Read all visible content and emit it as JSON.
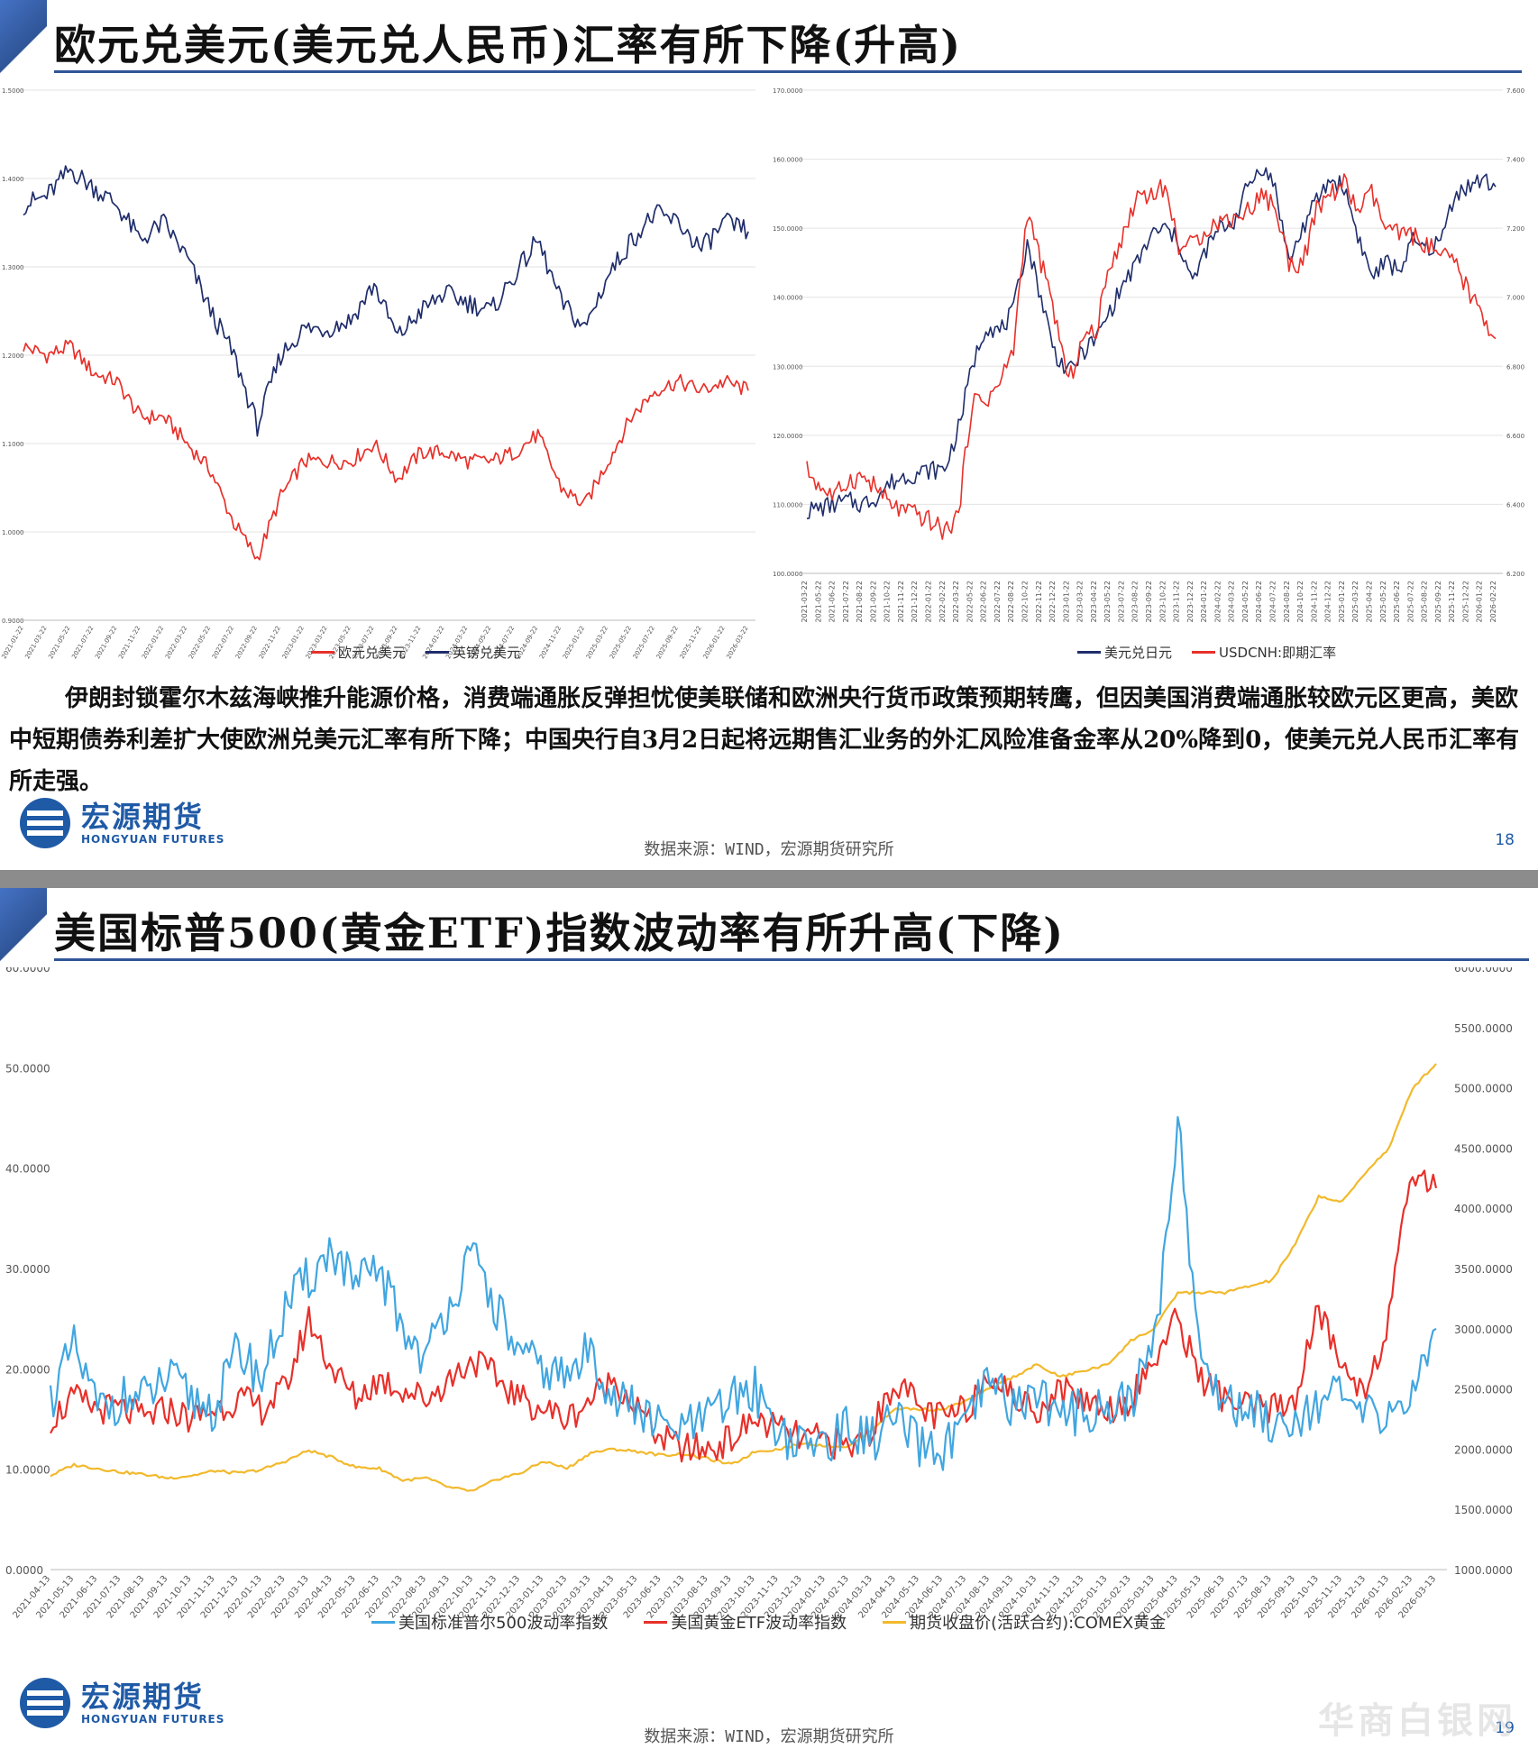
{
  "slide1": {
    "title": "欧元兑美元(美元兑人民币)汇率有所下降(升高)",
    "body": "伊朗封锁霍尔木兹海峡推升能源价格，消费端通胀反弹担忧使美联储和欧洲央行货币政策预期转鹰，但因美国消费端通胀较欧元区更高，美欧中短期债券利差扩大使欧洲兑美元汇率有所下降；中国央行自3月2日起将远期售汇业务的外汇风险准备金率从20%降到0，使美元兑人民币汇率有所走强。",
    "source": "数据来源：WIND，宏源期货研究所",
    "page": "18"
  },
  "slide2": {
    "title": "美国标普500(黄金ETF)指数波动率有所升高(下降)",
    "source": "数据来源：WIND，宏源期货研究所",
    "page": "19"
  },
  "logo": {
    "cn": "宏源期货",
    "en": "HONGYUAN FUTURES"
  },
  "watermark": "华商白银网",
  "colors": {
    "navy": "#1f2d6b",
    "red": "#e8302a",
    "blue": "#41a6e0",
    "gold": "#f2b92c",
    "brand": "#1f5aa6"
  },
  "chart_data": [
    {
      "id": "eur-gbp-usd",
      "type": "line",
      "legend_position": "bottom",
      "grid": true,
      "ylim": [
        0.9,
        1.5
      ],
      "yticks": [
        "1.5000",
        "1.4000",
        "1.3000",
        "1.2000",
        "1.1000",
        "1.0000",
        "0.9000"
      ],
      "x": [
        "2021-01-22",
        "2021-03-22",
        "2021-05-22",
        "2021-07-22",
        "2021-09-22",
        "2021-11-22",
        "2022-01-22",
        "2022-03-22",
        "2022-05-22",
        "2022-07-22",
        "2022-09-22",
        "2022-11-22",
        "2023-01-22",
        "2023-03-22",
        "2023-05-22",
        "2023-07-22",
        "2023-09-22",
        "2023-11-22",
        "2024-01-22",
        "2024-03-22",
        "2024-05-22",
        "2024-07-22",
        "2024-09-22",
        "2024-11-22",
        "2025-01-22",
        "2025-03-22",
        "2025-05-22",
        "2025-07-22",
        "2025-09-22",
        "2025-11-22",
        "2026-01-22",
        "2026-03-22"
      ],
      "series": [
        {
          "name": "欧元兑美元",
          "color": "#e8302a",
          "values": [
            1.21,
            1.2,
            1.21,
            1.18,
            1.17,
            1.13,
            1.13,
            1.1,
            1.07,
            1.01,
            0.97,
            1.04,
            1.08,
            1.08,
            1.08,
            1.1,
            1.06,
            1.09,
            1.09,
            1.08,
            1.08,
            1.09,
            1.11,
            1.05,
            1.03,
            1.08,
            1.13,
            1.16,
            1.17,
            1.16,
            1.17,
            1.16
          ]
        },
        {
          "name": "英镑兑美元",
          "color": "#1f2d6b",
          "values": [
            1.37,
            1.38,
            1.41,
            1.39,
            1.37,
            1.33,
            1.35,
            1.31,
            1.25,
            1.2,
            1.12,
            1.2,
            1.23,
            1.23,
            1.24,
            1.28,
            1.22,
            1.25,
            1.27,
            1.26,
            1.25,
            1.29,
            1.33,
            1.26,
            1.23,
            1.29,
            1.33,
            1.36,
            1.35,
            1.32,
            1.35,
            1.34
          ]
        }
      ]
    },
    {
      "id": "usdjpy-usdcnh",
      "type": "line",
      "legend_position": "bottom",
      "grid": true,
      "ylim_left": [
        100,
        170
      ],
      "ylim_right": [
        6.2,
        7.6
      ],
      "yticks_left": [
        "170.0000",
        "160.0000",
        "150.0000",
        "140.0000",
        "130.0000",
        "120.0000",
        "110.0000",
        "100.0000"
      ],
      "yticks_right": [
        "7.600",
        "7.400",
        "7.200",
        "7.000",
        "6.800",
        "6.600",
        "6.400",
        "6.200"
      ],
      "x": [
        "2021-03-22",
        "2021-05-22",
        "2021-06-22",
        "2021-07-22",
        "2021-08-22",
        "2021-09-22",
        "2021-10-22",
        "2021-11-22",
        "2021-12-22",
        "2022-01-22",
        "2022-02-22",
        "2022-03-22",
        "2022-05-22",
        "2022-06-22",
        "2022-07-22",
        "2022-08-22",
        "2022-10-22",
        "2022-11-22",
        "2022-12-22",
        "2023-01-22",
        "2023-03-22",
        "2023-04-22",
        "2023-05-22",
        "2023-07-22",
        "2023-08-22",
        "2023-09-22",
        "2023-10-22",
        "2023-11-22",
        "2023-12-22",
        "2024-01-22",
        "2024-02-22",
        "2024-03-22",
        "2024-05-22",
        "2024-06-22",
        "2024-07-22",
        "2024-08-22",
        "2024-10-22",
        "2024-11-22",
        "2024-12-22",
        "2025-01-22",
        "2025-03-22",
        "2025-04-22",
        "2025-05-22",
        "2025-06-22",
        "2025-07-22",
        "2025-08-22",
        "2025-09-22",
        "2025-11-22",
        "2025-12-22",
        "2026-01-22",
        "2026-02-22"
      ],
      "series": [
        {
          "name": "美元兑日元",
          "color": "#1f2d6b",
          "axis": "left",
          "values": [
            109,
            109.5,
            110,
            110.5,
            110,
            111,
            113,
            114,
            114.5,
            115,
            115,
            121,
            130,
            136,
            135,
            138,
            148,
            140,
            132,
            129,
            132,
            134,
            138,
            142,
            145,
            149,
            150,
            148,
            142,
            147,
            150,
            151,
            156,
            159,
            156,
            145,
            150,
            154,
            157,
            156,
            149,
            143,
            145,
            144,
            148,
            147,
            148,
            155,
            156,
            157,
            156
          ]
        },
        {
          "name": "USDCNH:即期汇率",
          "color": "#e8302a",
          "axis": "right",
          "values": [
            6.5,
            6.45,
            6.42,
            6.47,
            6.48,
            6.45,
            6.4,
            6.38,
            6.37,
            6.35,
            6.32,
            6.37,
            6.7,
            6.7,
            6.75,
            6.85,
            7.25,
            7.1,
            6.95,
            6.75,
            6.88,
            6.9,
            7.1,
            7.18,
            7.3,
            7.3,
            7.32,
            7.15,
            7.15,
            7.2,
            7.22,
            7.23,
            7.25,
            7.3,
            7.26,
            7.1,
            7.1,
            7.25,
            7.3,
            7.33,
            7.25,
            7.3,
            7.2,
            7.18,
            7.18,
            7.15,
            7.12,
            7.1,
            7.02,
            6.95,
            6.88
          ]
        }
      ]
    },
    {
      "id": "volatility-gold",
      "type": "line",
      "legend_position": "bottom",
      "grid": false,
      "ylim_left": [
        0,
        60
      ],
      "ylim_right": [
        1000,
        6000
      ],
      "yticks_left": [
        "60.0000",
        "50.0000",
        "40.0000",
        "30.0000",
        "20.0000",
        "10.0000",
        "0.0000"
      ],
      "yticks_right": [
        "6000.0000",
        "5500.0000",
        "5000.0000",
        "4500.0000",
        "4000.0000",
        "3500.0000",
        "3000.0000",
        "2500.0000",
        "2000.0000",
        "1500.0000",
        "1000.0000"
      ],
      "x": [
        "2021-04-13",
        "2021-05-13",
        "2021-06-13",
        "2021-07-13",
        "2021-08-13",
        "2021-09-13",
        "2021-10-13",
        "2021-11-13",
        "2021-12-13",
        "2022-01-13",
        "2022-02-13",
        "2022-03-13",
        "2022-04-13",
        "2022-05-13",
        "2022-06-13",
        "2022-07-13",
        "2022-08-13",
        "2022-09-13",
        "2022-10-13",
        "2022-11-13",
        "2022-12-13",
        "2023-01-13",
        "2023-02-13",
        "2023-03-13",
        "2023-04-13",
        "2023-05-13",
        "2023-06-13",
        "2023-07-13",
        "2023-08-13",
        "2023-09-13",
        "2023-10-13",
        "2023-11-13",
        "2023-12-13",
        "2024-01-13",
        "2024-02-13",
        "2024-03-13",
        "2024-04-13",
        "2024-05-13",
        "2024-06-13",
        "2024-07-13",
        "2024-08-13",
        "2024-09-13",
        "2024-10-13",
        "2024-11-13",
        "2024-12-13",
        "2025-01-13",
        "2025-02-13",
        "2025-03-13",
        "2025-04-13",
        "2025-05-13",
        "2025-06-13",
        "2025-07-13",
        "2025-08-13",
        "2025-09-13",
        "2025-10-13",
        "2025-11-13",
        "2025-12-13",
        "2026-01-13",
        "2026-02-13",
        "2026-03-13"
      ],
      "series": [
        {
          "name": "美国标准普尔500波动率指数",
          "color": "#41a6e0",
          "axis": "left",
          "values": [
            17,
            22,
            16,
            17,
            17,
            19,
            17,
            16,
            22,
            19,
            26,
            29,
            32,
            28,
            30,
            24,
            21,
            27,
            31,
            26,
            21,
            20,
            19,
            22,
            17,
            16,
            14,
            14,
            15,
            17,
            18,
            14,
            12,
            13,
            14,
            13,
            15,
            12,
            12,
            14,
            19,
            16,
            18,
            15,
            16,
            16,
            17,
            22,
            45,
            20,
            17,
            16,
            15,
            15,
            17,
            17,
            15,
            16,
            17,
            24
          ]
        },
        {
          "name": "美国黄金ETF波动率指数",
          "color": "#e8302a",
          "axis": "left",
          "values": [
            15,
            17,
            16,
            16,
            15,
            16,
            15,
            16,
            17,
            16,
            18,
            25,
            20,
            17,
            19,
            18,
            17,
            19,
            21,
            19,
            17,
            16,
            15,
            17,
            19,
            16,
            13,
            12,
            12,
            13,
            15,
            14,
            13,
            13,
            12,
            14,
            19,
            16,
            15,
            16,
            20,
            17,
            16,
            18,
            17,
            16,
            17,
            21,
            25,
            19,
            17,
            16,
            16,
            17,
            26,
            20,
            18,
            25,
            40,
            38
          ]
        },
        {
          "name": "期货收盘价(活跃合约):COMEX黄金",
          "color": "#f2b92c",
          "axis": "right",
          "values": [
            1780,
            1870,
            1840,
            1810,
            1790,
            1760,
            1780,
            1820,
            1800,
            1830,
            1900,
            1990,
            1930,
            1850,
            1840,
            1740,
            1760,
            1680,
            1650,
            1750,
            1800,
            1900,
            1840,
            1970,
            2000,
            1980,
            1950,
            1960,
            1920,
            1870,
            1980,
            2000,
            2050,
            2030,
            2020,
            2170,
            2340,
            2330,
            2330,
            2400,
            2500,
            2600,
            2700,
            2600,
            2650,
            2700,
            2900,
            3000,
            3300,
            3300,
            3300,
            3350,
            3400,
            3700,
            4100,
            4050,
            4300,
            4500,
            5000,
            5200
          ]
        }
      ]
    }
  ]
}
